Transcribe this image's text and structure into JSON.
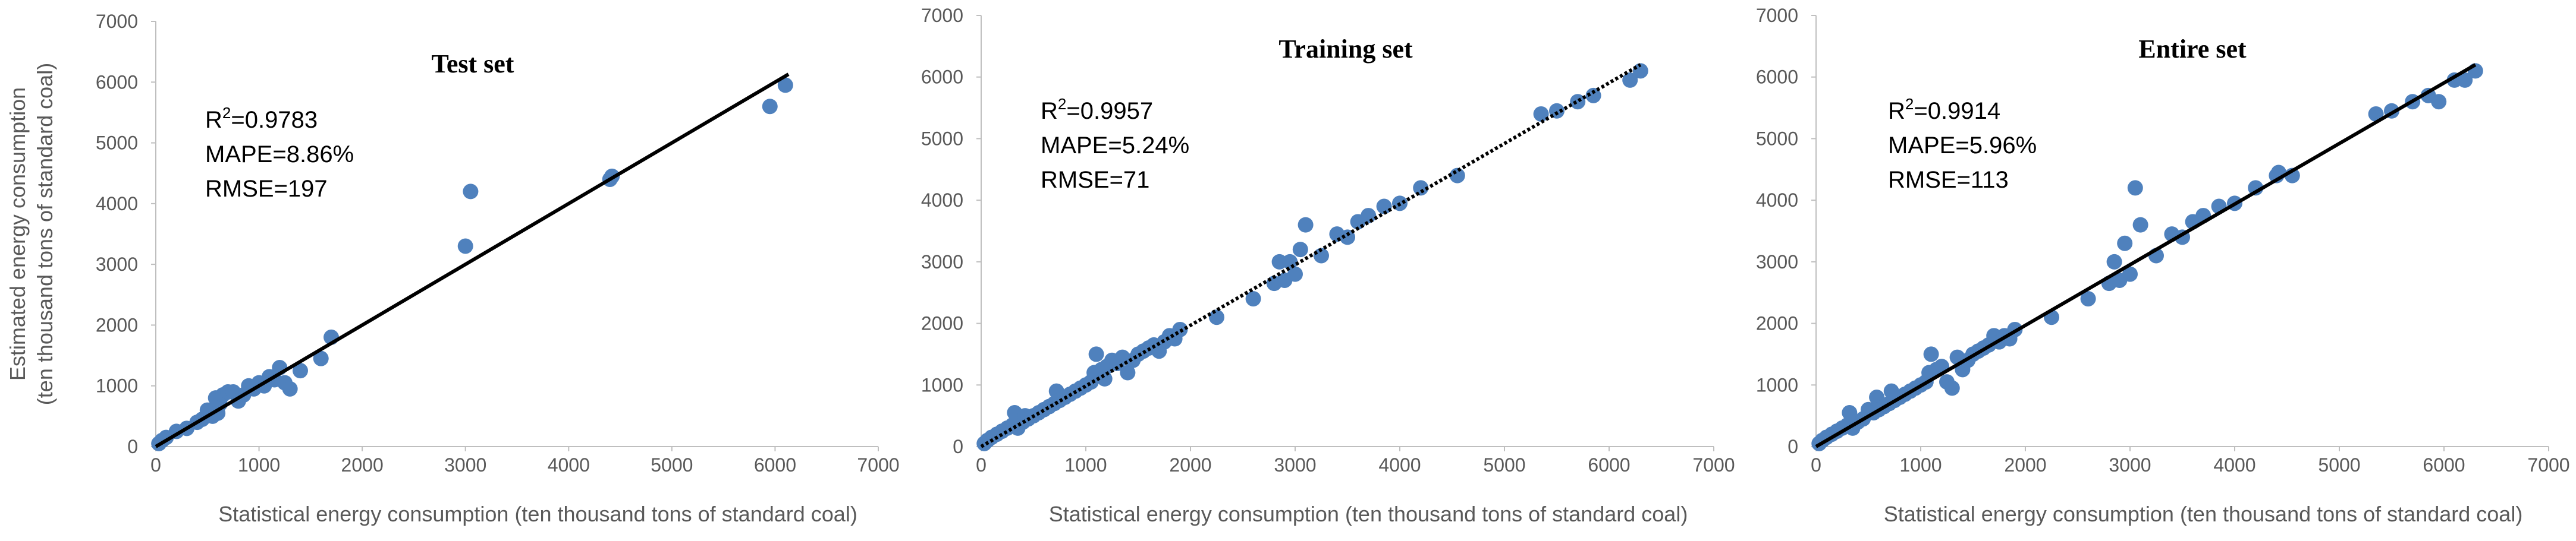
{
  "chart_data": [
    {
      "type": "scatter",
      "title": "Test set",
      "xlabel": "Statistical energy consumption (ten thousand tons of standard coal)",
      "ylabel": "Estimated energy consumption",
      "ylabel_line2": "(ten thousand tons of standard coal)",
      "xlim": [
        0,
        7000
      ],
      "ylim": [
        0,
        7000
      ],
      "xticks": [
        "0",
        "1000",
        "2000",
        "3000",
        "4000",
        "5000",
        "6000",
        "7000"
      ],
      "yticks": [
        "0",
        "1000",
        "2000",
        "3000",
        "4000",
        "5000",
        "6000",
        "7000"
      ],
      "grid": false,
      "stats": {
        "r2_label": "R",
        "r2_sup": "2",
        "r2_value": "=0.9783",
        "mape": "MAPE=8.86%",
        "rmse": "RMSE=197"
      },
      "fit_line": {
        "x": [
          0,
          6130
        ],
        "y": [
          0,
          6130
        ],
        "style": "solid"
      },
      "points": {
        "x": [
          30,
          60,
          100,
          200,
          300,
          400,
          450,
          500,
          550,
          580,
          600,
          620,
          650,
          700,
          750,
          800,
          850,
          900,
          950,
          1000,
          1050,
          1100,
          1150,
          1200,
          1250,
          1300,
          1400,
          1600,
          1700,
          3000,
          3050,
          4400,
          4420,
          5950,
          6100
        ],
        "y": [
          50,
          100,
          150,
          250,
          300,
          400,
          450,
          600,
          500,
          800,
          550,
          700,
          850,
          900,
          900,
          750,
          850,
          1000,
          950,
          1050,
          1000,
          1150,
          1100,
          1300,
          1050,
          950,
          1250,
          1450,
          1800,
          3300,
          4200,
          4400,
          4450,
          5600,
          5950
        ]
      },
      "color": "#4f81bd"
    },
    {
      "type": "scatter",
      "title": "Training set",
      "xlabel": "Statistical energy consumption (ten thousand tons of standard coal)",
      "xlim": [
        0,
        7000
      ],
      "ylim": [
        0,
        7000
      ],
      "xticks": [
        "0",
        "1000",
        "2000",
        "3000",
        "4000",
        "5000",
        "6000",
        "7000"
      ],
      "yticks": [
        "0",
        "1000",
        "2000",
        "3000",
        "4000",
        "5000",
        "6000",
        "7000"
      ],
      "grid": false,
      "stats": {
        "r2_label": "R",
        "r2_sup": "2",
        "r2_value": "=0.9957",
        "mape": "MAPE=5.24%",
        "rmse": "RMSE=71"
      },
      "fit_line": {
        "x": [
          0,
          6300
        ],
        "y": [
          0,
          6200
        ],
        "style": "dotted"
      },
      "points": {
        "x": [
          30,
          60,
          100,
          150,
          200,
          250,
          300,
          320,
          350,
          400,
          420,
          450,
          500,
          550,
          600,
          650,
          700,
          720,
          750,
          800,
          850,
          900,
          950,
          1000,
          1050,
          1080,
          1100,
          1150,
          1180,
          1200,
          1250,
          1300,
          1350,
          1400,
          1450,
          1500,
          1550,
          1600,
          1650,
          1700,
          1750,
          1800,
          1850,
          1900,
          2250,
          2600,
          2800,
          2850,
          2900,
          2950,
          3000,
          3050,
          3100,
          3250,
          3400,
          3500,
          3600,
          3700,
          3850,
          4000,
          4200,
          4550,
          5350,
          5500,
          5700,
          5850,
          6200,
          6300
        ],
        "y": [
          50,
          100,
          150,
          200,
          250,
          300,
          350,
          550,
          300,
          400,
          500,
          450,
          500,
          550,
          600,
          650,
          700,
          900,
          750,
          800,
          850,
          900,
          950,
          1000,
          1050,
          1200,
          1500,
          1250,
          1100,
          1300,
          1400,
          1350,
          1450,
          1200,
          1400,
          1500,
          1550,
          1600,
          1650,
          1550,
          1700,
          1800,
          1750,
          1900,
          2100,
          2400,
          2650,
          3000,
          2700,
          3000,
          2800,
          3200,
          3600,
          3100,
          3450,
          3400,
          3650,
          3750,
          3900,
          3950,
          4200,
          4400,
          5400,
          5450,
          5600,
          5700,
          5950,
          6100
        ]
      },
      "color": "#4f81bd"
    },
    {
      "type": "scatter",
      "title": "Entire set",
      "xlabel": "Statistical energy consumption (ten thousand tons of standard coal)",
      "xlim": [
        0,
        7000
      ],
      "ylim": [
        0,
        7000
      ],
      "xticks": [
        "0",
        "1000",
        "2000",
        "3000",
        "4000",
        "5000",
        "6000",
        "7000"
      ],
      "yticks": [
        "0",
        "1000",
        "2000",
        "3000",
        "4000",
        "5000",
        "6000",
        "7000"
      ],
      "grid": false,
      "stats": {
        "r2_label": "R",
        "r2_sup": "2",
        "r2_value": "=0.9914",
        "mape": "MAPE=5.96%",
        "rmse": "RMSE=113"
      },
      "fit_line": {
        "x": [
          0,
          6300
        ],
        "y": [
          0,
          6200
        ],
        "style": "solid"
      },
      "points": {
        "x": [
          30,
          60,
          100,
          150,
          200,
          250,
          300,
          320,
          350,
          400,
          450,
          500,
          550,
          580,
          600,
          650,
          700,
          720,
          750,
          800,
          850,
          900,
          950,
          1000,
          1050,
          1080,
          1100,
          1150,
          1200,
          1250,
          1300,
          1350,
          1400,
          1450,
          1500,
          1550,
          1600,
          1650,
          1700,
          1750,
          1800,
          1850,
          1900,
          2250,
          2600,
          2800,
          2850,
          2900,
          2950,
          3000,
          3050,
          3100,
          3250,
          3400,
          3500,
          3600,
          3700,
          3850,
          4000,
          4200,
          4400,
          4420,
          4550,
          5350,
          5500,
          5700,
          5850,
          5950,
          6100,
          6200,
          6300
        ],
        "y": [
          50,
          100,
          150,
          200,
          250,
          300,
          350,
          550,
          300,
          400,
          450,
          600,
          550,
          800,
          600,
          650,
          700,
          900,
          750,
          800,
          850,
          900,
          950,
          1000,
          1050,
          1200,
          1500,
          1250,
          1300,
          1050,
          950,
          1450,
          1250,
          1400,
          1500,
          1550,
          1600,
          1650,
          1800,
          1700,
          1800,
          1750,
          1900,
          2100,
          2400,
          2650,
          3000,
          2700,
          3300,
          2800,
          4200,
          3600,
          3100,
          3450,
          3400,
          3650,
          3750,
          3900,
          3950,
          4200,
          4400,
          4450,
          4400,
          5400,
          5450,
          5600,
          5700,
          5600,
          5950,
          5950,
          6100
        ]
      },
      "color": "#4f81bd"
    }
  ]
}
